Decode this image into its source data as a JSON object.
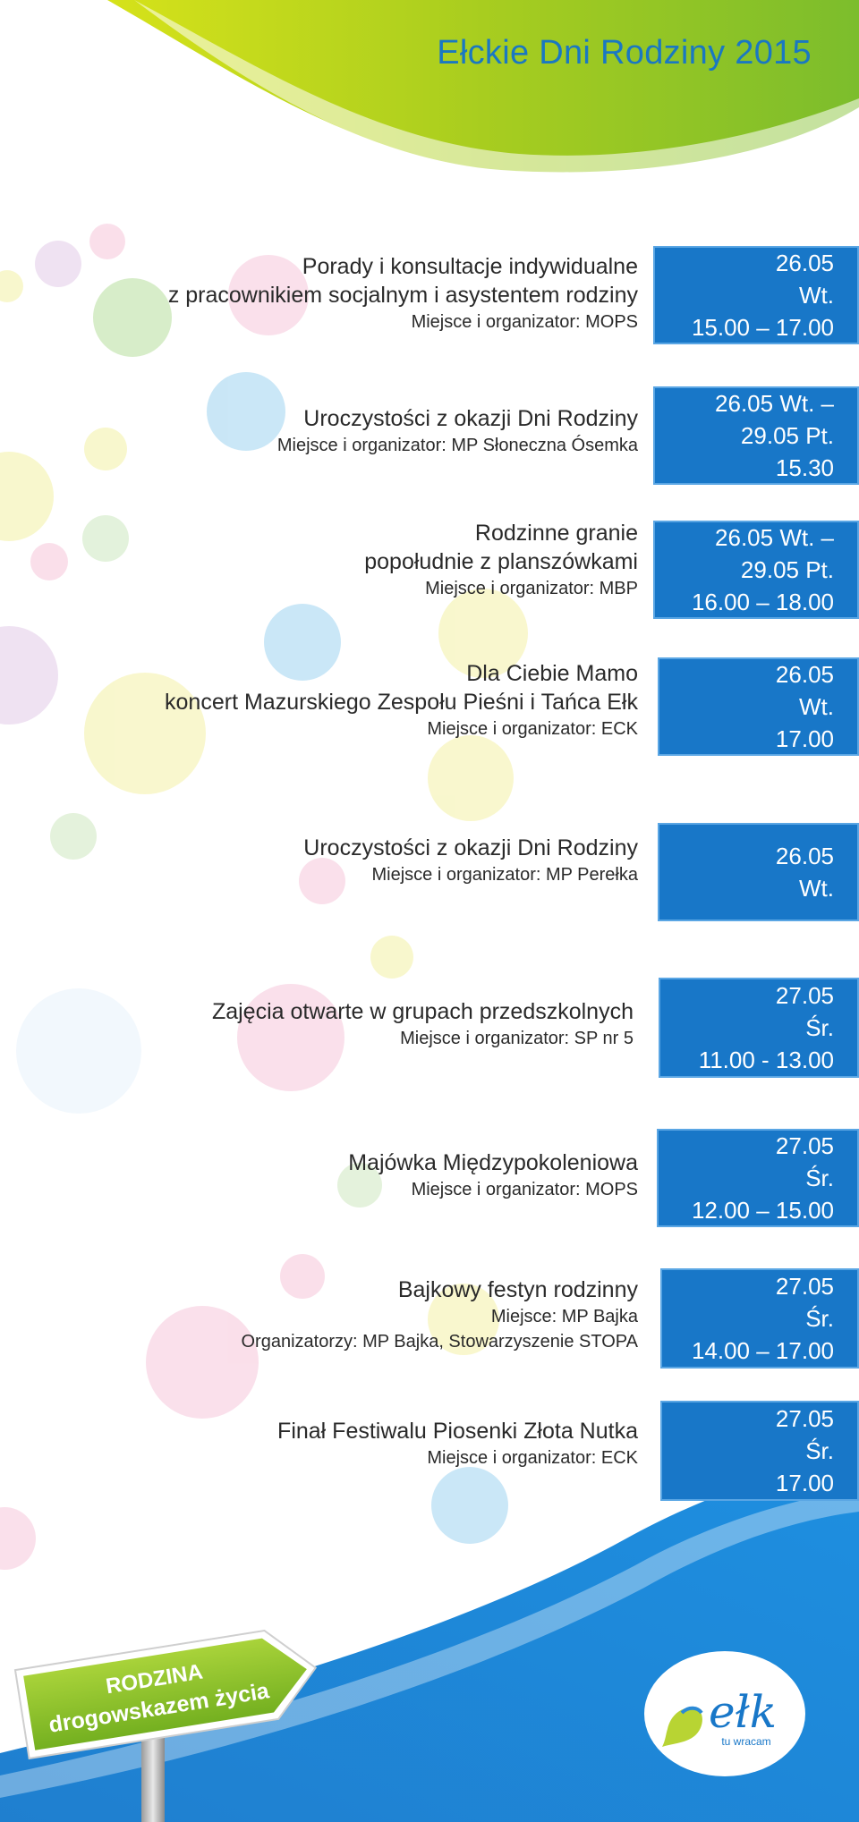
{
  "header": {
    "title": "Ełckie Dni Rodziny 2015"
  },
  "events": [
    {
      "title": [
        "Porady i konsultacje indywidualne",
        "z pracownikiem socjalnym i asystentem rodziny"
      ],
      "meta": [
        "Miejsce i organizator: MOPS"
      ],
      "date": [
        "26.05",
        "Wt.",
        "15.00 – 17.00"
      ]
    },
    {
      "title": [
        "Uroczystości z okazji Dni Rodziny"
      ],
      "meta": [
        "Miejsce i organizator: MP Słoneczna Ósemka"
      ],
      "date": [
        "26.05 Wt. –",
        "29.05 Pt.",
        "15.30"
      ]
    },
    {
      "title": [
        "Rodzinne granie",
        "popołudnie z planszówkami"
      ],
      "meta": [
        "Miejsce i organizator: MBP"
      ],
      "date": [
        "26.05 Wt. –",
        "29.05 Pt.",
        "16.00 – 18.00"
      ]
    },
    {
      "title": [
        "Dla Ciebie Mamo",
        "koncert Mazurskiego Zespołu Pieśni i Tańca Ełk"
      ],
      "meta": [
        "Miejsce i organizator: ECK"
      ],
      "date": [
        "26.05",
        "Wt.",
        "17.00"
      ]
    },
    {
      "title": [
        "Uroczystości z okazji Dni Rodziny"
      ],
      "meta": [
        "Miejsce i organizator: MP Perełka"
      ],
      "date": [
        "26.05",
        "Wt."
      ]
    },
    {
      "title": [
        "Zajęcia otwarte w grupach przedszkolnych"
      ],
      "meta": [
        "Miejsce i organizator: SP nr 5"
      ],
      "date": [
        "27.05",
        "Śr.",
        "11.00 - 13.00"
      ]
    },
    {
      "title": [
        "Majówka Międzypokoleniowa"
      ],
      "meta": [
        "Miejsce i organizator: MOPS"
      ],
      "date": [
        "27.05",
        "Śr.",
        "12.00 – 15.00"
      ]
    },
    {
      "title": [
        "Bajkowy festyn rodzinny"
      ],
      "meta": [
        "Miejsce: MP Bajka",
        "Organizatorzy: MP Bajka,  Stowarzyszenie STOPA"
      ],
      "date": [
        "27.05",
        "Śr.",
        "14.00 – 17.00"
      ]
    },
    {
      "title": [
        "Finał Festiwalu Piosenki Złota Nutka"
      ],
      "meta": [
        "Miejsce i organizator: ECK"
      ],
      "date": [
        "27.05",
        "Śr.",
        "17.00"
      ]
    }
  ],
  "sign": {
    "line1": "RODZINA",
    "line2": "drogowskazem życia"
  },
  "logo": {
    "name": "ełk",
    "tagline": "tu wracam"
  },
  "colors": {
    "accent_blue": "#1877c8",
    "title_blue": "#1a78c2",
    "lime_green": "#9cc31a",
    "sign_green": "#8cbf22"
  }
}
